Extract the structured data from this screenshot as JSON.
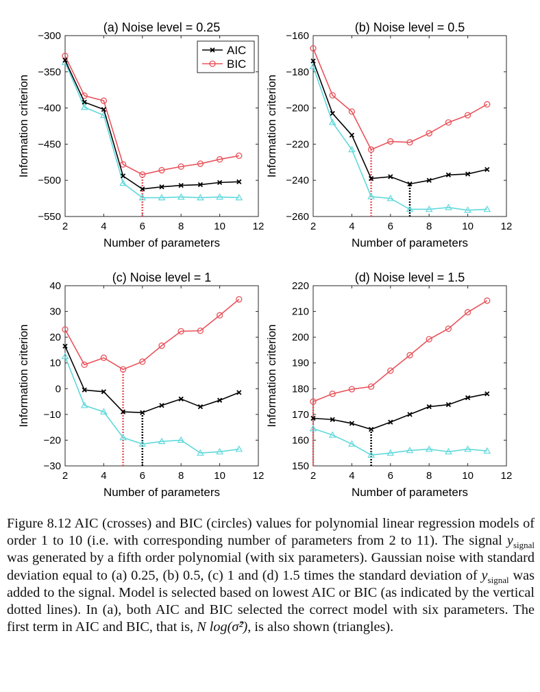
{
  "chart_data": [
    {
      "type": "line",
      "title": "(a)  Noise level = 0.25",
      "xlabel": "Number of parameters",
      "ylabel": "Information criterion",
      "xlim": [
        2,
        12
      ],
      "ylim": [
        -550,
        -300
      ],
      "xticks": [
        2,
        4,
        6,
        8,
        10,
        12
      ],
      "yticks": [
        -550,
        -500,
        -450,
        -400,
        -350,
        -300
      ],
      "x": [
        2,
        3,
        4,
        5,
        6,
        7,
        8,
        9,
        10,
        11
      ],
      "legend": {
        "position": "top-right",
        "entries": [
          "AIC",
          "BIC"
        ]
      },
      "series": [
        {
          "name": "AIC",
          "color": "#000000",
          "marker": "cross",
          "values": [
            -334,
            -392,
            -402,
            -494,
            -512,
            -509,
            -507,
            -506,
            -503,
            -502
          ]
        },
        {
          "name": "BIC",
          "color": "#e8525a",
          "marker": "circle",
          "values": [
            -328,
            -383,
            -390,
            -478,
            -492,
            -486,
            -481,
            -477,
            -471,
            -466
          ]
        },
        {
          "color": "#5fd8dc",
          "marker": "triangle",
          "values": [
            -337,
            -399,
            -410,
            -504,
            -524,
            -524,
            -523,
            -524,
            -523,
            -524
          ]
        }
      ],
      "selection_lines": [
        {
          "color": "#000000",
          "x": 6
        },
        {
          "color": "#e8525a",
          "x": 6
        }
      ]
    },
    {
      "type": "line",
      "title": "(b)  Noise level = 0.5",
      "xlabel": "Number of parameters",
      "ylabel": "Information criterion",
      "xlim": [
        2,
        12
      ],
      "ylim": [
        -260,
        -160
      ],
      "xticks": [
        2,
        4,
        6,
        8,
        10,
        12
      ],
      "yticks": [
        -260,
        -240,
        -220,
        -200,
        -180,
        -160
      ],
      "x": [
        2,
        3,
        4,
        5,
        6,
        7,
        8,
        9,
        10,
        11
      ],
      "series": [
        {
          "name": "AIC",
          "color": "#000000",
          "marker": "cross",
          "values": [
            -174,
            -203,
            -215,
            -239,
            -238,
            -242,
            -240,
            -237,
            -236.5,
            -234
          ]
        },
        {
          "name": "BIC",
          "color": "#e8525a",
          "marker": "circle",
          "values": [
            -167,
            -193,
            -202,
            -223,
            -218.5,
            -219,
            -214,
            -208,
            -204,
            -198
          ]
        },
        {
          "color": "#5fd8dc",
          "marker": "triangle",
          "values": [
            -177,
            -208,
            -223,
            -249,
            -250,
            -256,
            -256,
            -255,
            -256.5,
            -256
          ]
        }
      ],
      "selection_lines": [
        {
          "color": "#000000",
          "x": 7
        },
        {
          "color": "#e8525a",
          "x": 5
        }
      ]
    },
    {
      "type": "line",
      "title": "(c)  Noise level = 1",
      "xlabel": "Number of parameters",
      "ylabel": "Information criterion",
      "xlim": [
        2,
        12
      ],
      "ylim": [
        -30,
        40
      ],
      "xticks": [
        2,
        4,
        6,
        8,
        10,
        12
      ],
      "yticks": [
        -30,
        -20,
        -10,
        0,
        10,
        20,
        30,
        40
      ],
      "x": [
        2,
        3,
        4,
        5,
        6,
        7,
        8,
        9,
        10,
        11
      ],
      "series": [
        {
          "name": "AIC",
          "color": "#000000",
          "marker": "cross",
          "values": [
            16.5,
            -0.5,
            -1.2,
            -9,
            -9.3,
            -6.5,
            -4,
            -7,
            -4.5,
            -1.5
          ]
        },
        {
          "name": "BIC",
          "color": "#e8525a",
          "marker": "circle",
          "values": [
            23,
            9.3,
            12,
            7.5,
            10.5,
            16.7,
            22.3,
            22.5,
            28.5,
            34.7
          ]
        },
        {
          "color": "#5fd8dc",
          "marker": "triangle",
          "values": [
            12.5,
            -6.5,
            -9,
            -19,
            -21.5,
            -20.5,
            -20,
            -25,
            -24.5,
            -23.5
          ]
        }
      ],
      "selection_lines": [
        {
          "color": "#000000",
          "x": 6
        },
        {
          "color": "#e8525a",
          "x": 5
        }
      ]
    },
    {
      "type": "line",
      "title": "(d)  Noise level = 1.5",
      "xlabel": "Number of parameters",
      "ylabel": "Information criterion",
      "xlim": [
        2,
        12
      ],
      "ylim": [
        150,
        220
      ],
      "xticks": [
        2,
        4,
        6,
        8,
        10,
        12
      ],
      "yticks": [
        150,
        160,
        170,
        180,
        190,
        200,
        210,
        220
      ],
      "x": [
        2,
        3,
        4,
        5,
        6,
        7,
        8,
        9,
        10,
        11
      ],
      "series": [
        {
          "name": "AIC",
          "color": "#000000",
          "marker": "cross",
          "values": [
            168.5,
            168,
            166.5,
            164.2,
            167,
            170,
            173,
            173.8,
            176.5,
            178
          ]
        },
        {
          "name": "BIC",
          "color": "#e8525a",
          "marker": "circle",
          "values": [
            175,
            178,
            179.8,
            180.8,
            187,
            193,
            199.2,
            203.3,
            209.7,
            214.2
          ]
        },
        {
          "color": "#5fd8dc",
          "marker": "triangle",
          "values": [
            164.5,
            162,
            158.5,
            154.2,
            155,
            156,
            156.5,
            155.5,
            156.5,
            155.8
          ]
        }
      ],
      "selection_lines": [
        {
          "color": "#000000",
          "x": 5
        },
        {
          "color": "#e8525a",
          "x": 2
        }
      ]
    }
  ],
  "caption": {
    "lead": "Figure 8.12 AIC (crosses) and BIC (circles) values for polynomial linear regression models of order 1 to 10 (i.e. with corresponding number of parameters from 2 to 11). The signal ",
    "y_symbol": "y",
    "y_subscript": "signal",
    "mid": " was generated by a fifth order polynomial (with six parameters). Gaussian noise with standard deviation equal to (a) 0.25, (b) 0.5, (c) 1 and (d) 1.5 times the standard deviation of ",
    "after_y2": " was added to the signal. Model is selected based on lowest AIC or BIC (as indicated by the vertical dotted lines). In (a), both AIC and BIC selected the correct model with six parameters. The first term in AIC and BIC, that is, ",
    "formula": "N log(σ̂²)",
    "tail": ", is also shown (triangles)."
  }
}
